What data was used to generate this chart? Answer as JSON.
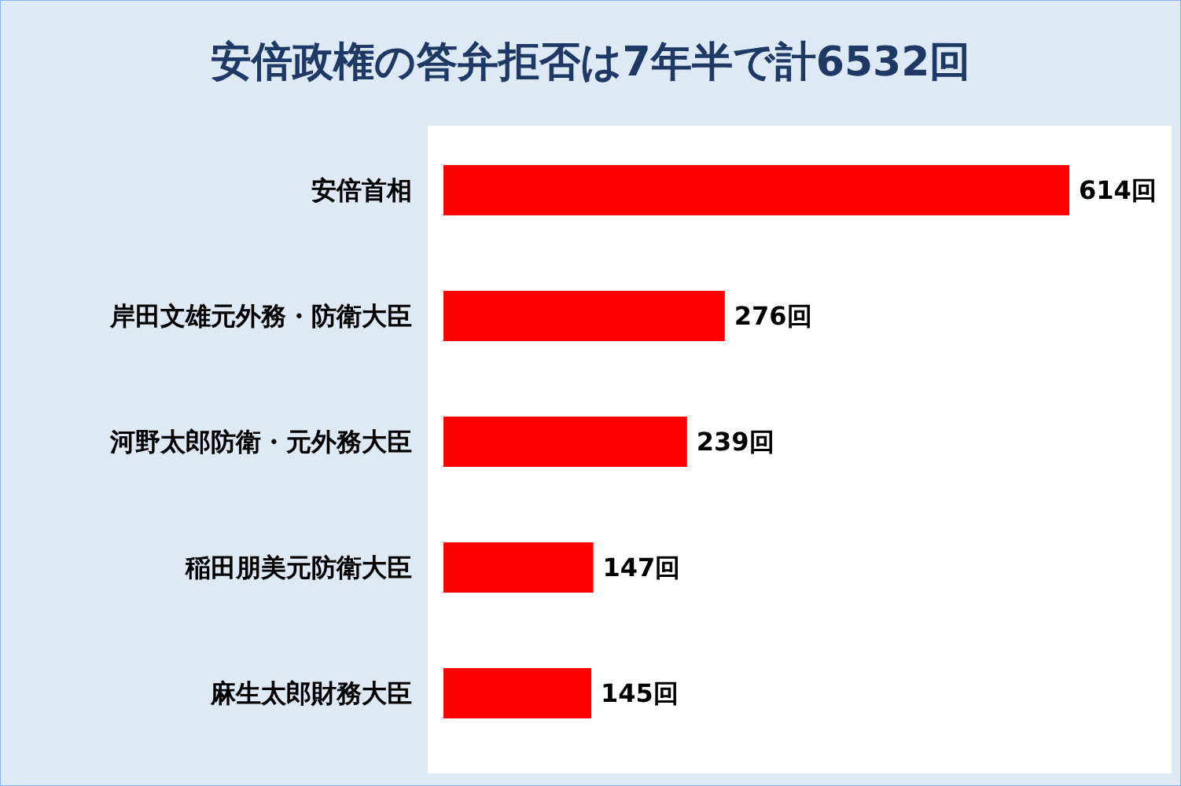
{
  "chart_data": {
    "type": "bar",
    "orientation": "horizontal",
    "title": "安倍政権の答弁拒否は7年半で計6532回",
    "categories": [
      "安倍首相",
      "岸田文雄元外務・防衛大臣",
      "河野太郎防衛・元外務大臣",
      "稲田朋美元防衛大臣",
      "麻生太郎財務大臣"
    ],
    "values": [
      614,
      276,
      239,
      147,
      145
    ],
    "value_labels": [
      "614回",
      "276回",
      "239回",
      "147回",
      "145回"
    ],
    "color": "#ff0000"
  }
}
